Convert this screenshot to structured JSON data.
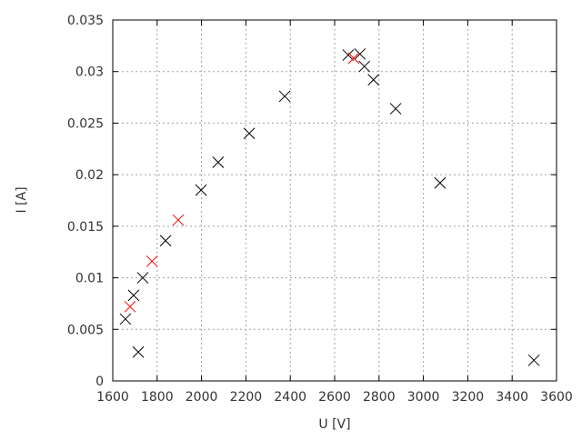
{
  "chart_data": {
    "type": "scatter",
    "title": "",
    "xlabel": "U [V]",
    "ylabel": "I [A]",
    "xlim": [
      1600,
      3600
    ],
    "ylim": [
      0,
      0.035
    ],
    "x_ticks": [
      "1600",
      "1800",
      "2000",
      "2200",
      "2400",
      "2600",
      "2800",
      "3000",
      "3200",
      "3400",
      "3600"
    ],
    "y_ticks": [
      "0",
      "0.005",
      "0.01",
      "0.015",
      "0.02",
      "0.025",
      "0.03",
      "0.035"
    ],
    "grid": true,
    "marker": "x",
    "series": [
      {
        "color": "#000000",
        "points": [
          [
            1657,
            0.006
          ],
          [
            1694,
            0.0083
          ],
          [
            1715,
            0.0028
          ],
          [
            1735,
            0.01
          ],
          [
            1838,
            0.0136
          ],
          [
            1998,
            0.0185
          ],
          [
            2075,
            0.0212
          ],
          [
            2215,
            0.024
          ],
          [
            2375,
            0.0276
          ],
          [
            2661,
            0.0316
          ],
          [
            2714,
            0.0317
          ],
          [
            2734,
            0.0305
          ],
          [
            2775,
            0.0292
          ],
          [
            2875,
            0.0264
          ],
          [
            3075,
            0.0192
          ],
          [
            3498,
            0.002
          ]
        ]
      },
      {
        "color": "#ff0000",
        "points": [
          [
            1678,
            0.0072
          ],
          [
            1777,
            0.0116
          ],
          [
            1895,
            0.0156
          ],
          [
            2686,
            0.0313
          ]
        ]
      }
    ]
  }
}
